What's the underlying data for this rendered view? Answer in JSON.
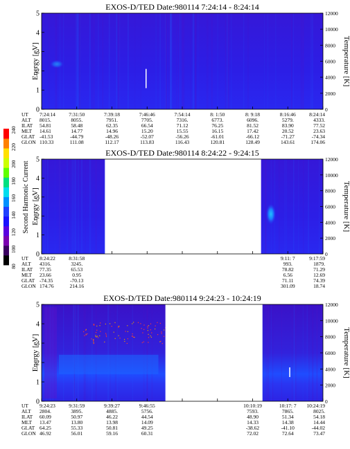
{
  "chart_data": {
    "type": "heatmap",
    "colorbar": {
      "label": "Second Harmonic Current",
      "ticks": [
        "240",
        "220",
        "200",
        "180",
        "160",
        "140",
        "120",
        "100",
        "80"
      ],
      "range": [
        80,
        240
      ],
      "colors": [
        "#000000",
        "#3a0060",
        "#7a00b0",
        "#5a00e0",
        "#1a10ff",
        "#2040ff",
        "#0090ff",
        "#00ddee",
        "#00e080",
        "#60ff00",
        "#ccff00",
        "#ffe000",
        "#ff8000",
        "#ff0000"
      ]
    },
    "panels": [
      {
        "title": "EXOS-D/TED   Date:980114  7:24:14 - 8:24:14",
        "ylabel": "Energy [eV]",
        "y2label": "Temperature [K]",
        "yticks": [
          "5",
          "4",
          "3",
          "2",
          "1",
          "0"
        ],
        "y2ticks": [
          "12000",
          "10000",
          "8000",
          "6000",
          "4000",
          "2000",
          "0"
        ],
        "ylim": [
          0,
          5
        ],
        "y2lim": [
          0,
          12000
        ],
        "gaps": [],
        "rows": [
          {
            "label": "UT",
            "values": [
              "7:24:14",
              "7:31:50",
              "7:39:18",
              "7:46:46",
              "7:54:14",
              "8: 1:50",
              "8: 9:18",
              "8:16:46",
              "8:24:14"
            ]
          },
          {
            "label": "ALT",
            "values": [
              "8015.",
              "8055.",
              "7951.",
              "7705.",
              "7316.",
              "6773.",
              "6096.",
              "5279.",
              "4333."
            ]
          },
          {
            "label": "ILAT",
            "values": [
              "54.81",
              "58.48",
              "62.35",
              "66.54",
              "71.12",
              "76.25",
              "81.52",
              "83.90",
              "77.52"
            ]
          },
          {
            "label": "MLT",
            "values": [
              "14.61",
              "14.77",
              "14.96",
              "15.20",
              "15.55",
              "16.15",
              "17.42",
              "20.52",
              "23.63"
            ]
          },
          {
            "label": "GLAT",
            "values": [
              "-41.53",
              "-44.79",
              "-48.26",
              "-52.07",
              "-56.26",
              "-61.01",
              "-66.12",
              "-71.27",
              "-74.34"
            ]
          },
          {
            "label": "GLON",
            "values": [
              "110.33",
              "111.08",
              "112.17",
              "113.83",
              "116.43",
              "120.81",
              "128.49",
              "143.61",
              "174.06"
            ]
          }
        ]
      },
      {
        "title": "EXOS-D/TED   Date:980114  8:24:22 - 9:24:15",
        "ylabel": "Energy [eV]",
        "y2label": "Temperature [K]",
        "yticks": [
          "5",
          "4",
          "3",
          "2",
          "1",
          "0"
        ],
        "y2ticks": [
          "12000",
          "10000",
          "8000",
          "6000",
          "4000",
          "2000",
          "0"
        ],
        "ylim": [
          0,
          5
        ],
        "y2lim": [
          0,
          12000
        ],
        "gaps": [
          [
            0.225,
            0.78
          ]
        ],
        "rows": [
          {
            "label": "UT",
            "values": [
              "8:24:22",
              "8:31:58",
              "",
              "",
              "",
              "",
              "",
              "9:11: 7",
              "9:17:59"
            ]
          },
          {
            "label": "ALT",
            "values": [
              "4316.",
              "3245.",
              "",
              "",
              "",
              "",
              "",
              "993.",
              "1879."
            ]
          },
          {
            "label": "ILAT",
            "values": [
              "77.35",
              "65.53",
              "",
              "",
              "",
              "",
              "",
              "78.82",
              "71.29"
            ]
          },
          {
            "label": "MLT",
            "values": [
              "23.66",
              "0.95",
              "",
              "",
              "",
              "",
              "",
              "6.56",
              "12.69"
            ]
          },
          {
            "label": "GLAT",
            "values": [
              "-74.35",
              "-70.13",
              "",
              "",
              "",
              "",
              "",
              "71.11",
              "74.39"
            ]
          },
          {
            "label": "GLON",
            "values": [
              "174.76",
              "214.16",
              "",
              "",
              "",
              "",
              "",
              "301.09",
              "18.74"
            ]
          }
        ]
      },
      {
        "title": "EXOS-D/TED   Date:980114  9:24:23 - 10:24:19",
        "ylabel": "Energy [eV]",
        "y2label": "Temperature [K]",
        "yticks": [
          "5",
          "4",
          "3",
          "2",
          "1",
          "0"
        ],
        "y2ticks": [
          "12000",
          "10000",
          "8000",
          "6000",
          "4000",
          "2000",
          "0"
        ],
        "ylim": [
          0,
          5
        ],
        "y2lim": [
          0,
          12000
        ],
        "gaps": [
          [
            0.44,
            0.785
          ]
        ],
        "rows": [
          {
            "label": "UT",
            "values": [
              "9:24:23",
              "9:31:59",
              "9:39:27",
              "9:46:55",
              "",
              "",
              "10:10:19",
              "10:17: 7",
              "10:24:19"
            ]
          },
          {
            "label": "ALT",
            "values": [
              "2804.",
              "3895.",
              "4885.",
              "5756.",
              "",
              "",
              "7593.",
              "7865.",
              "8025."
            ]
          },
          {
            "label": "ILAT",
            "values": [
              "60.09",
              "50.97",
              "46.22",
              "44.54",
              "",
              "",
              "48.90",
              "51.34",
              "54.18"
            ]
          },
          {
            "label": "MLT",
            "values": [
              "13.47",
              "13.80",
              "13.98",
              "14.09",
              "",
              "",
              "14.33",
              "14.38",
              "14.44"
            ]
          },
          {
            "label": "GLAT",
            "values": [
              "64.25",
              "55.33",
              "50.81",
              "49.25",
              "",
              "",
              "-38.62",
              "-41.10",
              "-44.02"
            ]
          },
          {
            "label": "GLON",
            "values": [
              "46.92",
              "56.01",
              "59.16",
              "60.31",
              "",
              "",
              "72.02",
              "72.64",
              "73.47"
            ]
          }
        ]
      }
    ]
  }
}
